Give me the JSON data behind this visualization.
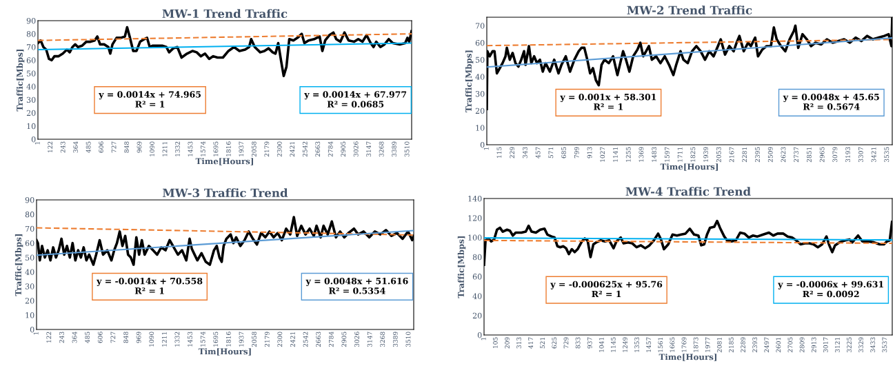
{
  "chart_data": [
    {
      "type": "line",
      "title": "MW-1 Trend Traffic",
      "xlabel": "Time[Hours]",
      "ylabel": "Traffic[Mbps]",
      "xlim": [
        1,
        3550
      ],
      "xticks": [
        1,
        122,
        243,
        364,
        485,
        606,
        727,
        848,
        969,
        1090,
        1211,
        1332,
        1453,
        1574,
        1695,
        1816,
        1937,
        2058,
        2179,
        2300,
        2421,
        2542,
        2663,
        2784,
        2905,
        3026,
        3147,
        3268,
        3389,
        3510
      ],
      "ylim": [
        0,
        90
      ],
      "yticks": [
        0,
        10,
        20,
        30,
        40,
        50,
        60,
        70,
        80,
        90
      ],
      "series": [
        {
          "color": "#000000",
          "x": [
            1,
            27,
            53,
            80,
            106,
            132,
            158,
            198,
            237,
            276,
            303,
            329,
            355,
            381,
            421,
            460,
            499,
            539,
            565,
            591,
            630,
            670,
            688,
            709,
            748,
            788,
            827,
            848,
            872,
            906,
            937,
            971,
            1011,
            1037,
            1063,
            1089,
            1129,
            1181,
            1221,
            1247,
            1286,
            1325,
            1365,
            1417,
            1470,
            1509,
            1548,
            1588,
            1627,
            1666,
            1706,
            1758,
            1810,
            1863,
            1915,
            1968,
            2007,
            2026,
            2060,
            2112,
            2152,
            2191,
            2230,
            2257,
            2283,
            2309,
            2335,
            2361,
            2388,
            2427,
            2466,
            2506,
            2532,
            2571,
            2624,
            2676,
            2702,
            2729,
            2768,
            2807,
            2834,
            2873,
            2912,
            2951,
            3004,
            3043,
            3083,
            3122,
            3161,
            3188,
            3214,
            3253,
            3292,
            3332,
            3371,
            3437,
            3489,
            3510,
            3527,
            3549
          ],
          "values": [
            73,
            75,
            70,
            68,
            61,
            60,
            63,
            63,
            65,
            68,
            66,
            70,
            72,
            70,
            71,
            74,
            74,
            75,
            78,
            72,
            72,
            70,
            65,
            72,
            77,
            77,
            78,
            85,
            78,
            67,
            67,
            74,
            76,
            77,
            70,
            71,
            71,
            71,
            70,
            66,
            69,
            70,
            62,
            65,
            67,
            66,
            63,
            65,
            61,
            63,
            62,
            62,
            67,
            70,
            67,
            68,
            70,
            76,
            70,
            66,
            67,
            69,
            66,
            65,
            73,
            60,
            48,
            55,
            76,
            75,
            77,
            80,
            73,
            75,
            76,
            78,
            67,
            75,
            79,
            81,
            76,
            74,
            81,
            75,
            74,
            76,
            74,
            79,
            73,
            70,
            74,
            70,
            72,
            76,
            73,
            72,
            73,
            77,
            74,
            82
          ]
        },
        {
          "type": "line",
          "color": "#ed7d31",
          "line_style": "dashed",
          "x": [
            1,
            3550
          ],
          "values": [
            75,
            80
          ]
        },
        {
          "type": "line",
          "color": "#00b0f0",
          "x": [
            1,
            3550
          ],
          "values": [
            68,
            73
          ]
        }
      ],
      "annotations": [
        "y = 0.0014x + 74.965\nR² = 1",
        "y = 0.0014x + 67.977\nR² = 0.0685"
      ]
    },
    {
      "type": "line",
      "title": "MW-2 Trend Traffic",
      "xlabel": "Time[Hours]",
      "ylabel": "Traffic[Mbps]",
      "xlim": [
        1,
        3580
      ],
      "xticks": [
        1,
        115,
        229,
        343,
        457,
        571,
        685,
        799,
        913,
        1027,
        1141,
        1255,
        1369,
        1483,
        1597,
        1711,
        1825,
        1939,
        2053,
        2167,
        2281,
        2395,
        2509,
        2623,
        2737,
        2851,
        2965,
        3079,
        3193,
        3307,
        3421,
        3535
      ],
      "ylim": [
        0,
        75
      ],
      "yticks": [
        0,
        10,
        20,
        30,
        40,
        50,
        60,
        70
      ],
      "series": [
        {
          "color": "#000000",
          "x": [
            1,
            6,
            26,
            52,
            69,
            90,
            115,
            140,
            166,
            178,
            204,
            229,
            254,
            280,
            305,
            330,
            343,
            373,
            394,
            419,
            444,
            470,
            495,
            520,
            558,
            596,
            634,
            660,
            698,
            736,
            774,
            812,
            837,
            862,
            888,
            913,
            938,
            964,
            989,
            1014,
            1040,
            1078,
            1116,
            1154,
            1179,
            1204,
            1230,
            1260,
            1293,
            1331,
            1356,
            1382,
            1407,
            1432,
            1458,
            1496,
            1534,
            1572,
            1610,
            1648,
            1673,
            1711,
            1737,
            1775,
            1813,
            1851,
            1889,
            1927,
            1965,
            2003,
            2041,
            2066,
            2104,
            2142,
            2180,
            2206,
            2231,
            2269,
            2307,
            2332,
            2370,
            2395,
            2433,
            2471,
            2509,
            2535,
            2560,
            2598,
            2636,
            2674,
            2712,
            2725,
            2750,
            2788,
            2826,
            2864,
            2902,
            2953,
            3003,
            3054,
            3105,
            3155,
            3206,
            3257,
            3307,
            3358,
            3409,
            3459,
            3510,
            3548,
            3573,
            3580
          ],
          "values": [
            21,
            55,
            52,
            55,
            55,
            42,
            45,
            48,
            52,
            57,
            50,
            54,
            48,
            46,
            50,
            55,
            47,
            58,
            48,
            52,
            48,
            50,
            43,
            48,
            43,
            50,
            42,
            47,
            52,
            43,
            50,
            55,
            57,
            57,
            50,
            42,
            45,
            38,
            35,
            47,
            50,
            48,
            52,
            41,
            48,
            55,
            50,
            43,
            52,
            56,
            60,
            52,
            55,
            58,
            50,
            52,
            48,
            52,
            47,
            41,
            47,
            55,
            50,
            48,
            55,
            58,
            55,
            50,
            55,
            52,
            58,
            62,
            53,
            58,
            55,
            60,
            64,
            55,
            60,
            58,
            63,
            52,
            56,
            58,
            58,
            69,
            62,
            58,
            55,
            62,
            67,
            70,
            57,
            65,
            62,
            58,
            60,
            59,
            62,
            60,
            61,
            62,
            60,
            63,
            61,
            64,
            62,
            63,
            64,
            65,
            58,
            75
          ]
        },
        {
          "type": "line",
          "color": "#ed7d31",
          "line_style": "dashed",
          "x": [
            1,
            3580
          ],
          "values": [
            58.3,
            61.9
          ]
        },
        {
          "type": "line",
          "color": "#5b9bd5",
          "x": [
            1,
            3580
          ],
          "values": [
            45.7,
            62.8
          ]
        }
      ],
      "annotations": [
        "y = 0.001x + 58.301\nR² = 1",
        "y = 0.0048x + 45.65\nR² = 0.5674"
      ]
    },
    {
      "type": "line",
      "title": "MW-3 Traffic Trend",
      "xlabel": "Tim[Hours]",
      "ylabel": "Traffic[Mbps]",
      "xlim": [
        1,
        3557
      ],
      "xticks": [
        1,
        122,
        243,
        364,
        485,
        606,
        727,
        848,
        969,
        1090,
        1211,
        1332,
        1453,
        1574,
        1695,
        1816,
        1937,
        2058,
        2179,
        2300,
        2421,
        2542,
        2663,
        2784,
        2905,
        3026,
        3147,
        3268,
        3389,
        3510
      ],
      "ylim": [
        0,
        90
      ],
      "yticks": [
        0,
        10,
        20,
        30,
        40,
        50,
        60,
        70,
        80,
        90
      ],
      "series": [
        {
          "color": "#000000",
          "x": [
            1,
            14,
            32,
            53,
            79,
            106,
            132,
            158,
            184,
            210,
            236,
            262,
            288,
            315,
            341,
            367,
            393,
            419,
            445,
            471,
            497,
            537,
            563,
            596,
            628,
            668,
            707,
            733,
            759,
            785,
            811,
            837,
            864,
            890,
            916,
            942,
            968,
            994,
            1020,
            1060,
            1099,
            1138,
            1177,
            1217,
            1256,
            1295,
            1334,
            1373,
            1413,
            1444,
            1465,
            1491,
            1517,
            1556,
            1596,
            1635,
            1674,
            1700,
            1726,
            1747,
            1765,
            1791,
            1831,
            1857,
            1883,
            1922,
            1962,
            2001,
            2040,
            2079,
            2118,
            2158,
            2197,
            2236,
            2275,
            2314,
            2354,
            2393,
            2427,
            2458,
            2497,
            2537,
            2576,
            2615,
            2641,
            2680,
            2707,
            2746,
            2785,
            2824,
            2863,
            2903,
            2942,
            2994,
            3033,
            3085,
            3138,
            3190,
            3242,
            3295,
            3347,
            3399,
            3452,
            3504,
            3543,
            3557
          ],
          "values": [
            62,
            60,
            48,
            58,
            50,
            55,
            48,
            57,
            50,
            55,
            63,
            52,
            58,
            50,
            60,
            48,
            55,
            50,
            57,
            48,
            52,
            45,
            52,
            62,
            52,
            55,
            48,
            55,
            60,
            68,
            58,
            65,
            52,
            50,
            45,
            64,
            52,
            62,
            52,
            58,
            55,
            52,
            57,
            55,
            62,
            57,
            52,
            55,
            48,
            63,
            56,
            52,
            48,
            53,
            47,
            45,
            55,
            58,
            50,
            47,
            58,
            63,
            66,
            60,
            64,
            58,
            62,
            68,
            63,
            59,
            67,
            64,
            68,
            64,
            67,
            62,
            70,
            66,
            78,
            65,
            72,
            66,
            70,
            65,
            72,
            64,
            72,
            66,
            75,
            64,
            68,
            64,
            67,
            70,
            66,
            68,
            64,
            68,
            66,
            69,
            65,
            67,
            63,
            68,
            62,
            65
          ]
        },
        {
          "type": "line",
          "color": "#ed7d31",
          "line_style": "dashed",
          "x": [
            1,
            3557
          ],
          "values": [
            70.6,
            65.6
          ]
        },
        {
          "type": "line",
          "color": "#5b9bd5",
          "x": [
            1,
            3557
          ],
          "values": [
            51.6,
            68.7
          ]
        }
      ],
      "annotations": [
        "y = -0.0014x + 70.558\nR² = 1",
        "y = 0.0048x + 51.616\nR² = 0.5354"
      ]
    },
    {
      "type": "line",
      "title": "MW-4 Traffic Trend",
      "xlabel": "Time[Hours]",
      "ylabel": "Traffic[Mbps]",
      "xlim": [
        1,
        3600
      ],
      "xticks": [
        1,
        105,
        209,
        313,
        417,
        521,
        625,
        729,
        833,
        937,
        1041,
        1145,
        1249,
        1353,
        1457,
        1561,
        1665,
        1769,
        1873,
        1977,
        2081,
        2185,
        2289,
        2393,
        2497,
        2601,
        2705,
        2809,
        2913,
        3017,
        3121,
        3225,
        3329,
        3433,
        3537
      ],
      "ylim": [
        0,
        140
      ],
      "yticks": [
        0,
        20,
        40,
        60,
        80,
        100,
        120,
        140
      ],
      "series": [
        {
          "color": "#000000",
          "x": [
            1,
            14,
            39,
            64,
            90,
            115,
            141,
            166,
            204,
            229,
            255,
            280,
            331,
            369,
            394,
            420,
            458,
            496,
            534,
            559,
            597,
            623,
            648,
            673,
            699,
            724,
            749,
            775,
            800,
            826,
            864,
            889,
            914,
            940,
            965,
            990,
            1028,
            1067,
            1105,
            1143,
            1168,
            1206,
            1231,
            1270,
            1308,
            1346,
            1384,
            1422,
            1460,
            1498,
            1536,
            1561,
            1587,
            1625,
            1663,
            1701,
            1739,
            1777,
            1815,
            1853,
            1891,
            1916,
            1942,
            1967,
            1993,
            2031,
            2056,
            2081,
            2119,
            2145,
            2183,
            2221,
            2259,
            2297,
            2335,
            2373,
            2411,
            2462,
            2513,
            2551,
            2589,
            2640,
            2678,
            2716,
            2754,
            2792,
            2830,
            2868,
            2906,
            2944,
            2982,
            3020,
            3045,
            3071,
            3096,
            3134,
            3185,
            3223,
            3248,
            3299,
            3337,
            3388,
            3439,
            3489,
            3527,
            3553,
            3578,
            3598
          ],
          "values": [
            72,
            97,
            99,
            96,
            98,
            108,
            110,
            106,
            108,
            107,
            102,
            105,
            105,
            106,
            112,
            106,
            105,
            108,
            109,
            103,
            101,
            100,
            91,
            90,
            91,
            89,
            83,
            88,
            85,
            88,
            96,
            99,
            97,
            80,
            93,
            95,
            97,
            96,
            97,
            89,
            96,
            100,
            94,
            95,
            94,
            90,
            92,
            89,
            92,
            97,
            104,
            98,
            88,
            93,
            103,
            102,
            103,
            104,
            109,
            103,
            102,
            92,
            93,
            103,
            110,
            111,
            117,
            110,
            101,
            97,
            96,
            97,
            105,
            104,
            100,
            102,
            101,
            103,
            105,
            102,
            104,
            104,
            101,
            100,
            97,
            93,
            94,
            94,
            93,
            90,
            93,
            101,
            92,
            85,
            92,
            95,
            97,
            98,
            95,
            102,
            96,
            96,
            95,
            93,
            93,
            96,
            97,
            116
          ]
        },
        {
          "type": "line",
          "color": "#ed7d31",
          "line_style": "dashed",
          "x": [
            1,
            3600
          ],
          "values": [
            97,
            94
          ]
        },
        {
          "type": "line",
          "color": "#00b0f0",
          "x": [
            1,
            3600
          ],
          "values": [
            99.6,
            97.5
          ]
        }
      ],
      "annotations": [
        "y = -0.000625x + 95.76\nR² = 1",
        "y = -0.0006x + 99.631\nR² = 0.0092"
      ]
    }
  ]
}
